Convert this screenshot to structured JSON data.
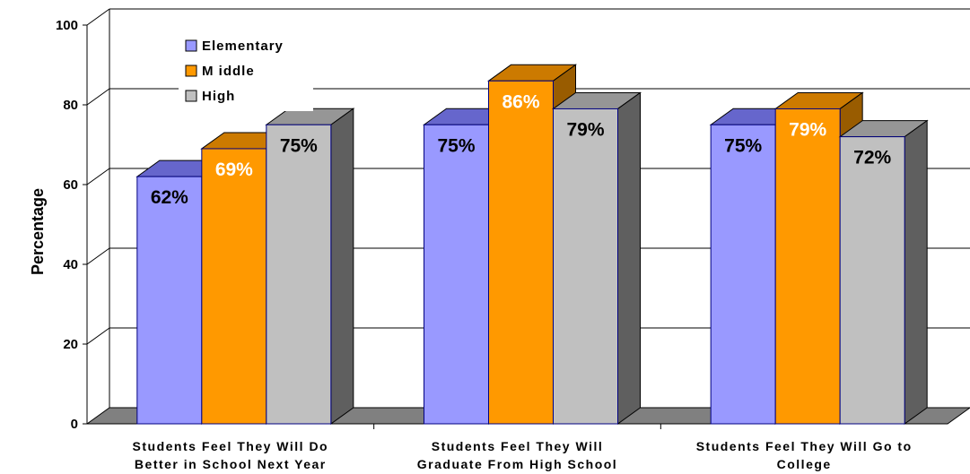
{
  "chart_data": {
    "type": "bar",
    "ylabel": "Percentage",
    "xlabel": "",
    "ylim": [
      0,
      100
    ],
    "yticks": [
      0,
      20,
      40,
      60,
      80,
      100
    ],
    "grid": true,
    "legend_position": "top-left",
    "categories": [
      [
        "Students Feel They Will Do",
        "Better in School Next Year"
      ],
      [
        "Students Feel They Will",
        "Graduate From High School"
      ],
      [
        "Students Feel They Will Go to",
        "College"
      ]
    ],
    "series": [
      {
        "name": "Elementary",
        "values": [
          62,
          75,
          75
        ],
        "labels": [
          "62%",
          "75%",
          "75%"
        ],
        "color": "#9999ff",
        "top_color": "#6666cc",
        "side_color": "#7070d0",
        "label_color": "#000000"
      },
      {
        "name": "M iddle",
        "values": [
          69,
          86,
          79
        ],
        "labels": [
          "69%",
          "86%",
          "79%"
        ],
        "color": "#ff9900",
        "top_color": "#cc7a00",
        "side_color": "#995c00",
        "label_color": "#ffffff"
      },
      {
        "name": "High",
        "values": [
          75,
          79,
          72
        ],
        "labels": [
          "75%",
          "79%",
          "72%"
        ],
        "color": "#c0c0c0",
        "top_color": "#969696",
        "side_color": "#5f5f5f",
        "label_color": "#000000"
      }
    ]
  }
}
